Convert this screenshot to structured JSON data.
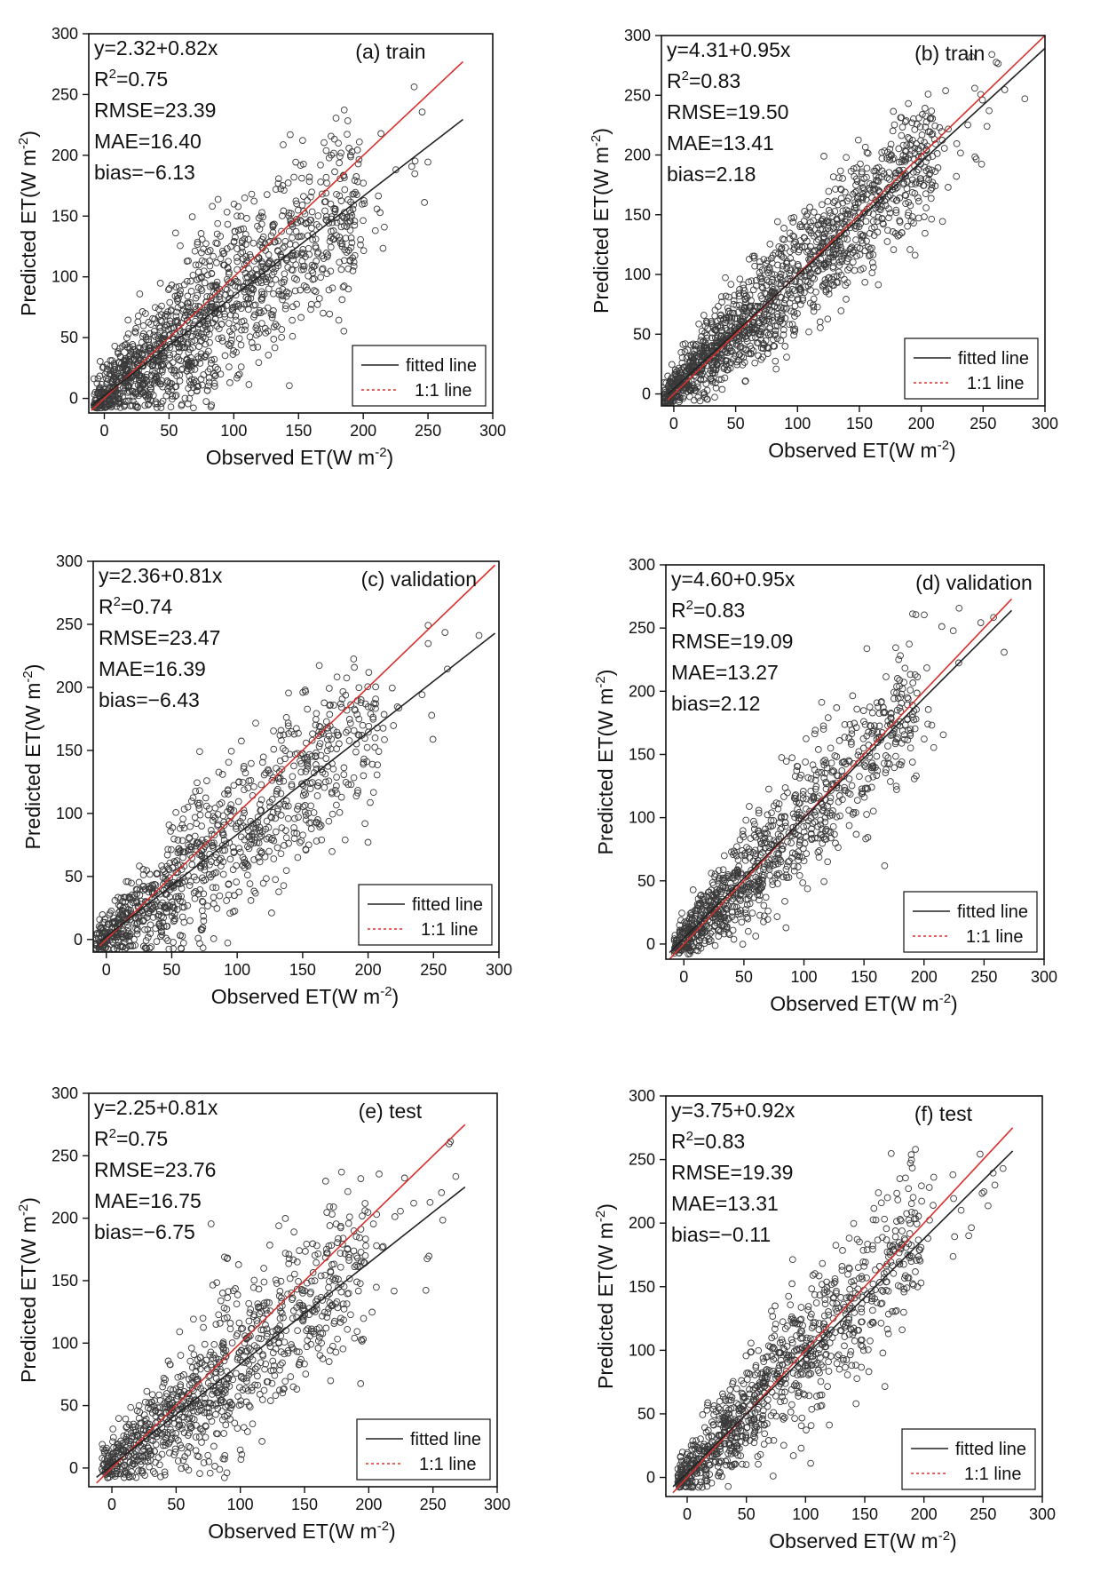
{
  "figure": {
    "description_free": true
  },
  "chart_data": [
    {
      "id": "a",
      "type": "scatter",
      "title": "(a) train",
      "xlabel_main": "Observed ET(W m",
      "xlabel_sup": "-2",
      "xlabel_end": ")",
      "ylabel_main": "Predicted ET(W m",
      "ylabel_sup": "-2",
      "ylabel_end": ")",
      "xlim": [
        -12,
        300
      ],
      "ylim": [
        -12,
        300
      ],
      "xticks": [
        0,
        50,
        100,
        150,
        200,
        250,
        300
      ],
      "yticks": [
        0,
        50,
        100,
        150,
        200,
        250,
        300
      ],
      "stats": {
        "equation": "y=2.32+0.82x",
        "r2_prefix": "R",
        "r2_sup": "2",
        "r2_value": "=0.75",
        "rmse": "RMSE=23.39",
        "mae": "MAE=16.40",
        "bias": "bias=−6.13"
      },
      "fit": {
        "intercept": 2.32,
        "slope": 0.82,
        "x_range": [
          -10,
          277
        ]
      },
      "one_to_one": {
        "x_range": [
          -10,
          277
        ]
      },
      "legend": {
        "fitted": "fitted line",
        "oneone": "1:1 line",
        "position": "bottom-right"
      },
      "cloud": {
        "slope": 0.82,
        "intercept": 2.32,
        "noise": 34,
        "xmax": 275,
        "n": 1400
      },
      "colors": {
        "fit": "#222222",
        "oneone": "#d9302c"
      }
    },
    {
      "id": "b",
      "type": "scatter",
      "title": "(b) train",
      "xlabel_main": "Observed ET(W m",
      "xlabel_sup": "-2",
      "xlabel_end": ")",
      "ylabel_main": "Predicted ET(W m",
      "ylabel_sup": "-2",
      "ylabel_end": ")",
      "xlim": [
        -10,
        300
      ],
      "ylim": [
        -10,
        300
      ],
      "xticks": [
        0,
        50,
        100,
        150,
        200,
        250,
        300
      ],
      "yticks": [
        0,
        50,
        100,
        150,
        200,
        250,
        300
      ],
      "stats": {
        "equation": "y=4.31+0.95x",
        "r2_prefix": "R",
        "r2_sup": "2",
        "r2_value": "=0.83",
        "rmse": "RMSE=19.50",
        "mae": "MAE=13.41",
        "bias": "bias=2.18"
      },
      "fit": {
        "intercept": 4.31,
        "slope": 0.95,
        "x_range": [
          -5,
          300
        ]
      },
      "one_to_one": {
        "x_range": [
          -5,
          300
        ]
      },
      "legend": {
        "fitted": "fitted line",
        "oneone": "1:1 line",
        "position": "bottom-right"
      },
      "cloud": {
        "slope": 0.95,
        "intercept": 4.31,
        "noise": 27,
        "xmax": 290,
        "n": 1500
      },
      "colors": {
        "fit": "#222222",
        "oneone": "#d9302c"
      }
    },
    {
      "id": "c",
      "type": "scatter",
      "title": "(c)  validation",
      "xlabel_main": "Observed ET(W m",
      "xlabel_sup": "-2",
      "xlabel_end": ")",
      "ylabel_main": "Predicted ET(W m",
      "ylabel_sup": "-2",
      "ylabel_end": ")",
      "xlim": [
        -10,
        300
      ],
      "ylim": [
        -10,
        300
      ],
      "xticks": [
        0,
        50,
        100,
        150,
        200,
        250,
        300
      ],
      "yticks": [
        0,
        50,
        100,
        150,
        200,
        250,
        300
      ],
      "stats": {
        "equation": "y=2.36+0.81x",
        "r2_prefix": "R",
        "r2_sup": "2",
        "r2_value": "=0.74",
        "rmse": "RMSE=23.47",
        "mae": "MAE=16.39",
        "bias": "bias=−6.43"
      },
      "fit": {
        "intercept": 2.36,
        "slope": 0.81,
        "x_range": [
          -5,
          297
        ]
      },
      "one_to_one": {
        "x_range": [
          -5,
          297
        ]
      },
      "legend": {
        "fitted": "fitted line",
        "oneone": "1:1 line",
        "position": "bottom-right"
      },
      "cloud": {
        "slope": 0.81,
        "intercept": 2.36,
        "noise": 32,
        "xmax": 290,
        "n": 1000
      },
      "colors": {
        "fit": "#222222",
        "oneone": "#d9302c"
      }
    },
    {
      "id": "d",
      "type": "scatter",
      "title": "(d)  validation",
      "xlabel_main": "Observed ET(W m",
      "xlabel_sup": "-2",
      "xlabel_end": ")",
      "ylabel_main": "Predicted ET(W m",
      "ylabel_sup": "-2",
      "ylabel_end": ")",
      "xlim": [
        -15,
        300
      ],
      "ylim": [
        -12,
        300
      ],
      "xticks": [
        0,
        50,
        100,
        150,
        200,
        250,
        300
      ],
      "yticks": [
        0,
        50,
        100,
        150,
        200,
        250,
        300
      ],
      "stats": {
        "equation": "y=4.60+0.95x",
        "r2_prefix": "R",
        "r2_sup": "2",
        "r2_value": "=0.83",
        "rmse": "RMSE=19.09",
        "mae": "MAE=13.27",
        "bias": "bias=2.12"
      },
      "fit": {
        "intercept": 4.6,
        "slope": 0.95,
        "x_range": [
          -12,
          273
        ]
      },
      "one_to_one": {
        "x_range": [
          -12,
          273
        ]
      },
      "legend": {
        "fitted": "fitted line",
        "oneone": "1:1 line",
        "position": "bottom-right"
      },
      "cloud": {
        "slope": 0.95,
        "intercept": 4.6,
        "noise": 26,
        "xmax": 270,
        "n": 1000
      },
      "colors": {
        "fit": "#222222",
        "oneone": "#d9302c"
      }
    },
    {
      "id": "e",
      "type": "scatter",
      "title": "(e)  test",
      "xlabel_main": "Observed ET(W m",
      "xlabel_sup": "-2",
      "xlabel_end": ")",
      "ylabel_main": "Predicted ET(W m",
      "ylabel_sup": "-2",
      "ylabel_end": ")",
      "xlim": [
        -18,
        300
      ],
      "ylim": [
        -15,
        300
      ],
      "xticks": [
        0,
        50,
        100,
        150,
        200,
        250,
        300
      ],
      "yticks": [
        0,
        50,
        100,
        150,
        200,
        250,
        300
      ],
      "stats": {
        "equation": "y=2.25+0.81x",
        "r2_prefix": "R",
        "r2_sup": "2",
        "r2_value": "=0.75",
        "rmse": "RMSE=23.76",
        "mae": "MAE=16.75",
        "bias": "bias=−6.75"
      },
      "fit": {
        "intercept": 2.25,
        "slope": 0.81,
        "x_range": [
          -12,
          275
        ]
      },
      "one_to_one": {
        "x_range": [
          -12,
          275
        ]
      },
      "legend": {
        "fitted": "fitted line",
        "oneone": "1:1 line",
        "position": "bottom-right"
      },
      "cloud": {
        "slope": 0.81,
        "intercept": 2.25,
        "noise": 32,
        "xmax": 275,
        "n": 1000
      },
      "colors": {
        "fit": "#222222",
        "oneone": "#d9302c"
      }
    },
    {
      "id": "f",
      "type": "scatter",
      "title": "(f)  test",
      "xlabel_main": "Observed ET(W m",
      "xlabel_sup": "-2",
      "xlabel_end": ")",
      "ylabel_main": "Predicted ET(W m",
      "ylabel_sup": "-2",
      "ylabel_end": ")",
      "xlim": [
        -18,
        300
      ],
      "ylim": [
        -15,
        300
      ],
      "xticks": [
        0,
        50,
        100,
        150,
        200,
        250,
        300
      ],
      "yticks": [
        0,
        50,
        100,
        150,
        200,
        250,
        300
      ],
      "stats": {
        "equation": "y=3.75+0.92x",
        "r2_prefix": "R",
        "r2_sup": "2",
        "r2_value": "=0.83",
        "rmse": "RMSE=19.39",
        "mae": "MAE=13.31",
        "bias": "bias=−0.11"
      },
      "fit": {
        "intercept": 3.75,
        "slope": 0.92,
        "x_range": [
          -12,
          275
        ]
      },
      "one_to_one": {
        "x_range": [
          -12,
          275
        ]
      },
      "legend": {
        "fitted": "fitted line",
        "oneone": "1:1 line",
        "position": "bottom-right"
      },
      "cloud": {
        "slope": 0.92,
        "intercept": 3.75,
        "noise": 28,
        "xmax": 275,
        "n": 1000
      },
      "colors": {
        "fit": "#222222",
        "oneone": "#d9302c"
      }
    }
  ]
}
